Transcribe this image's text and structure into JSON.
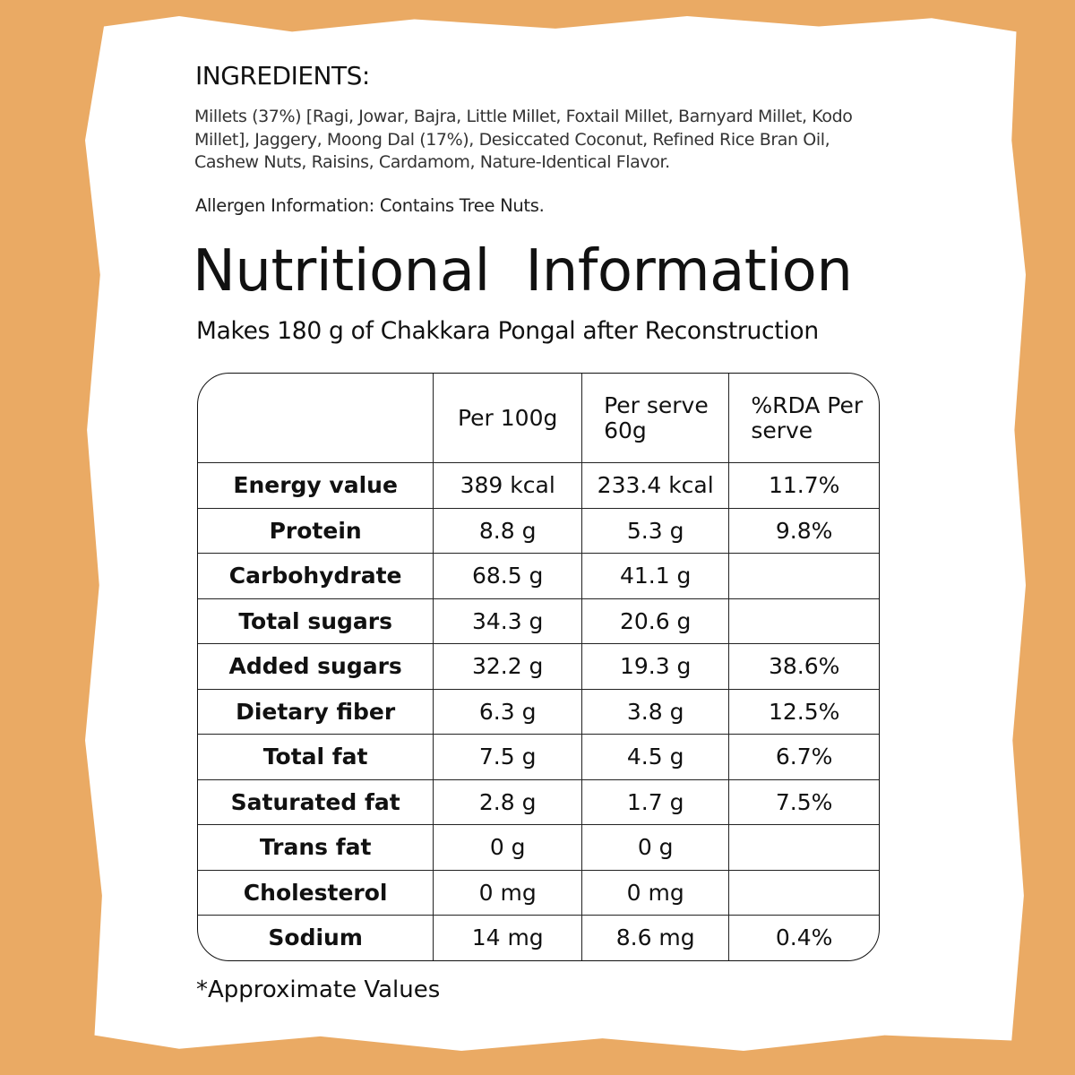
{
  "ingredients": {
    "title": "INGREDIENTS:",
    "text": "Millets (37%) [Ragi, Jowar, Bajra, Little Millet, Foxtail Millet, Barnyard Millet, Kodo Millet], Jaggery, Moong Dal (17%), Desiccated Coconut, Refined Rice Bran Oil, Cashew Nuts, Raisins, Cardamom, Nature-Identical Flavor.",
    "allergen": "Allergen Information: Contains Tree Nuts."
  },
  "nutrition": {
    "title": "Nutritional  Information",
    "subtitle": "Makes 180 g of Chakkara Pongal after Reconstruction",
    "headers": [
      "",
      "Per 100g",
      "Per serve 60g",
      "%RDA Per serve"
    ],
    "rows": [
      [
        "Energy value",
        "389 kcal",
        "233.4 kcal",
        "11.7%"
      ],
      [
        "Protein",
        "8.8 g",
        "5.3 g",
        "9.8%"
      ],
      [
        "Carbohydrate",
        "68.5 g",
        "41.1 g",
        ""
      ],
      [
        "Total sugars",
        "34.3 g",
        "20.6 g",
        ""
      ],
      [
        "Added sugars",
        "32.2 g",
        "19.3 g",
        "38.6%"
      ],
      [
        "Dietary fiber",
        "6.3 g",
        "3.8 g",
        "12.5%"
      ],
      [
        "Total fat",
        "7.5 g",
        "4.5 g",
        "6.7%"
      ],
      [
        "Saturated fat",
        "2.8 g",
        "1.7 g",
        "7.5%"
      ],
      [
        "Trans fat",
        "0 g",
        "0 g",
        ""
      ],
      [
        "Cholesterol",
        "0 mg",
        "0 mg",
        ""
      ],
      [
        "Sodium",
        "14 mg",
        "8.6 mg",
        "0.4%"
      ]
    ],
    "footnote": "*Approximate Values"
  },
  "colors": {
    "background": "#eaaa64",
    "panel": "#ffffff",
    "text": "#111111"
  }
}
